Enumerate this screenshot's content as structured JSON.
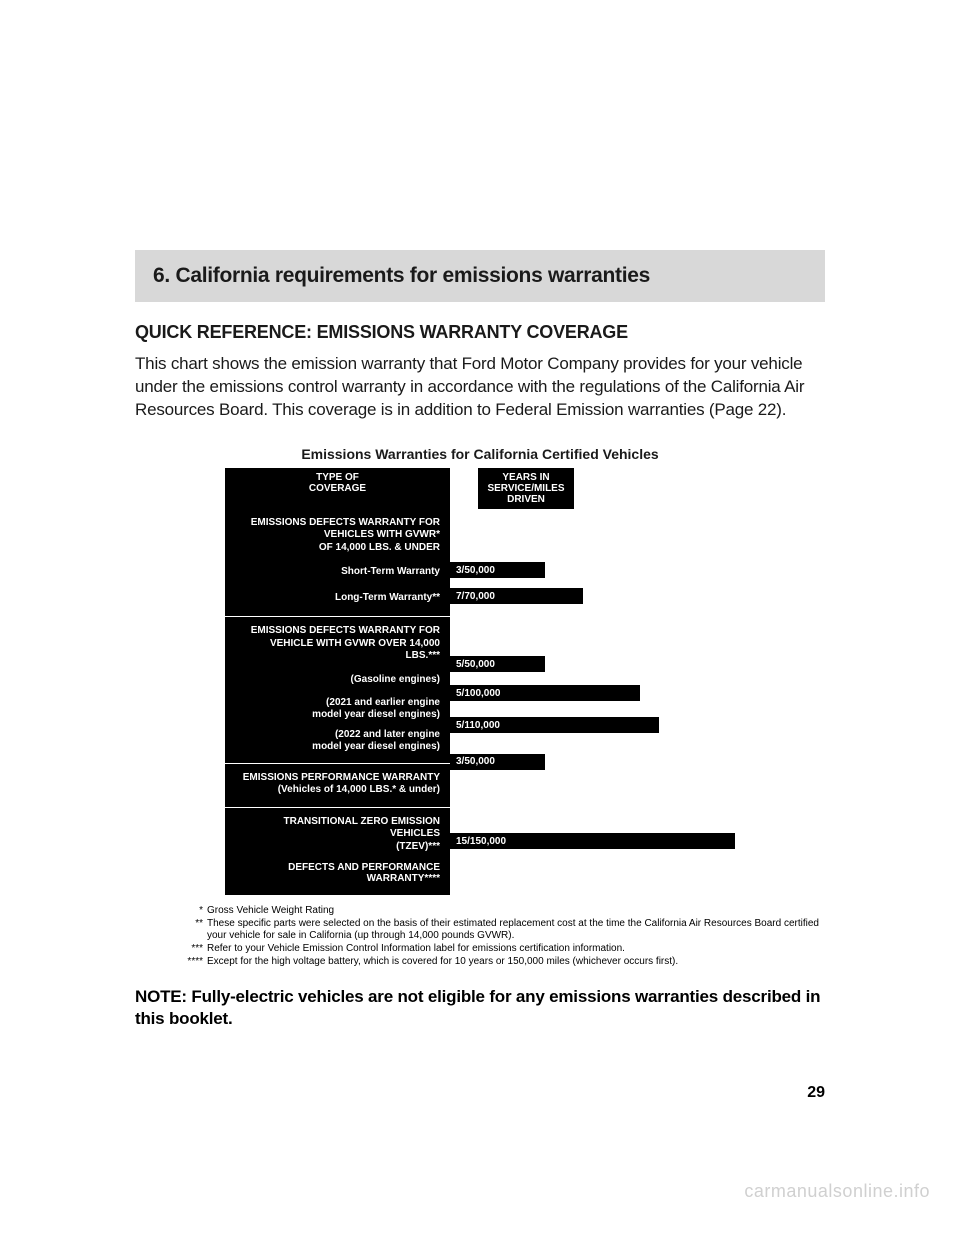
{
  "section": {
    "title": "6. California requirements for emissions warranties"
  },
  "subtitle": "QUICK REFERENCE: EMISSIONS WARRANTY COVERAGE",
  "intro": "This chart shows the emission warranty that Ford Motor Company provides for your vehicle under the emissions control warranty in accordance with the regulations of the California Air Resources Board. This coverage is in addition to Federal Emission warranties (Page 22).",
  "chart": {
    "title": "Emissions Warranties for California Certified Vehicles",
    "header_left": "TYPE OF\nCOVERAGE",
    "header_right": "YEARS IN\nSERVICE/MILES\nDRIVEN",
    "max_value": 150000,
    "bars_area_width": 285,
    "groups": [
      {
        "heading": "EMISSIONS DEFECTS WARRANTY FOR\nVEHICLES WITH GVWR*\nOF 14,000 LBS. & UNDER",
        "rows": [
          {
            "label": "Short-Term Warranty",
            "value_label": "3/50,000",
            "value": 50000
          },
          {
            "label": "Long-Term Warranty**",
            "value_label": "7/70,000",
            "value": 70000
          }
        ]
      },
      {
        "heading": "EMISSIONS DEFECTS WARRANTY FOR\nVEHICLE WITH GVWR OVER 14,000 LBS.***",
        "rows": [
          {
            "label": "(Gasoline engines)",
            "value_label": "5/50,000",
            "value": 50000
          },
          {
            "label": "(2021 and earlier engine\nmodel year diesel engines)",
            "value_label": "5/100,000",
            "value": 100000,
            "tall": true
          },
          {
            "label": "(2022 and later engine\nmodel year diesel engines)",
            "value_label": "5/110,000",
            "value": 110000,
            "tall": true
          }
        ]
      },
      {
        "heading": "EMISSIONS PERFORMANCE WARRANTY\n(Vehicles of 14,000 LBS.* & under)",
        "inline_bar": {
          "value_label": "3/50,000",
          "value": 50000
        }
      },
      {
        "heading": "TRANSITIONAL ZERO EMISSION VEHICLES\n(TZEV)***",
        "rows": [
          {
            "label": "DEFECTS AND PERFORMANCE\nWARRANTY****",
            "value_label": "15/150,000",
            "value": 150000,
            "tall": true
          }
        ]
      }
    ]
  },
  "footnotes": [
    {
      "marker": "*",
      "text": "Gross Vehicle Weight Rating"
    },
    {
      "marker": "**",
      "text": "These specific parts were selected on the basis of their estimated replacement cost at the time the California Air Resources Board certified your vehicle for sale in California (up through 14,000 pounds GVWR)."
    },
    {
      "marker": "***",
      "text": "Refer to your Vehicle Emission Control Information label for emissions certification information."
    },
    {
      "marker": "****",
      "text": "Except for the high voltage battery, which is covered for 10 years or 150,000 miles (whichever occurs first)."
    }
  ],
  "note": {
    "label": "NOTE:",
    "body": "Fully-electric vehicles are not eligible for any emissions warranties described in this booklet."
  },
  "page_number": "29",
  "watermark": "carmanualsonline.info"
}
